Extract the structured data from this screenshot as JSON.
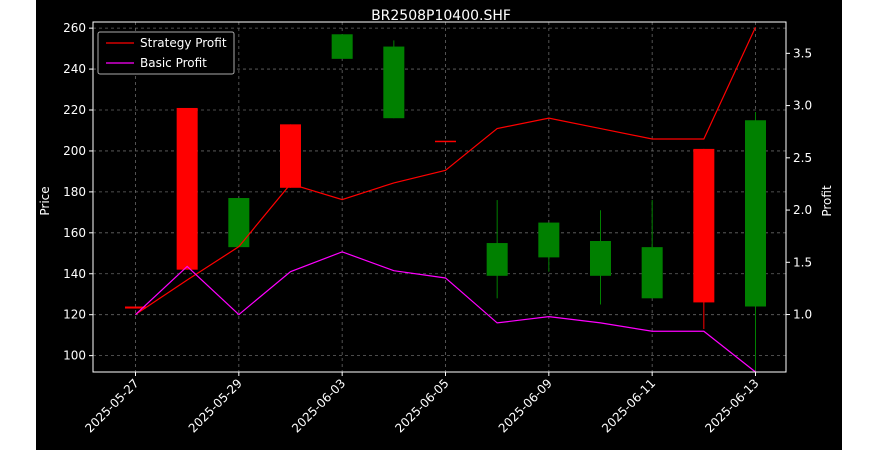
{
  "chart_data": {
    "type": "candlestick",
    "title": "BR2508P10400.SHF",
    "ylabel_left": "Price",
    "ylabel_right": "Profit",
    "xlabel": "",
    "grid": true,
    "legend_position": "top-left",
    "ylim_left": [
      92,
      263
    ],
    "ylim_right": [
      0.45,
      3.8
    ],
    "y_ticks_left": [
      100,
      120,
      140,
      160,
      180,
      200,
      220,
      240,
      260
    ],
    "y_ticks_right": [
      1.0,
      1.5,
      2.0,
      2.5,
      3.0,
      3.5
    ],
    "x_ticks": [
      {
        "i": 0,
        "label": "2025-05-27"
      },
      {
        "i": 2,
        "label": "2025-05-29"
      },
      {
        "i": 4,
        "label": "2025-06-03"
      },
      {
        "i": 6,
        "label": "2025-06-05"
      },
      {
        "i": 8,
        "label": "2025-06-09"
      },
      {
        "i": 10,
        "label": "2025-06-11"
      },
      {
        "i": 12,
        "label": "2025-06-13"
      }
    ],
    "candles": [
      {
        "i": 0,
        "open": 124,
        "close": 123,
        "high": 124,
        "low": 123,
        "color": "#ff0000"
      },
      {
        "i": 1,
        "open": 221,
        "close": 142,
        "high": 221,
        "low": 142,
        "color": "#ff0000"
      },
      {
        "i": 2,
        "open": 153,
        "close": 177,
        "high": 177,
        "low": 153,
        "color": "#008000"
      },
      {
        "i": 3,
        "open": 213,
        "close": 182,
        "high": 213,
        "low": 182,
        "color": "#ff0000"
      },
      {
        "i": 4,
        "open": 245,
        "close": 257,
        "high": 257,
        "low": 245,
        "color": "#008000"
      },
      {
        "i": 5,
        "open": 216,
        "close": 251,
        "high": 254,
        "low": 216,
        "color": "#008000"
      },
      {
        "i": 6,
        "open": 205,
        "close": 205,
        "high": 205,
        "low": 205,
        "color": "#ff0000"
      },
      {
        "i": 7,
        "open": 139,
        "close": 155,
        "high": 176,
        "low": 128,
        "color": "#008000"
      },
      {
        "i": 8,
        "open": 148,
        "close": 165,
        "high": 165,
        "low": 141,
        "color": "#008000"
      },
      {
        "i": 9,
        "open": 139,
        "close": 156,
        "high": 171,
        "low": 125,
        "color": "#008000"
      },
      {
        "i": 10,
        "open": 128,
        "close": 153,
        "high": 176,
        "low": 128,
        "color": "#008000"
      },
      {
        "i": 11,
        "open": 201,
        "close": 126,
        "high": 201,
        "low": 113,
        "color": "#ff0000"
      },
      {
        "i": 12,
        "open": 124,
        "close": 215,
        "high": 219,
        "low": 93,
        "color": "#008000"
      }
    ],
    "series": [
      {
        "name": "Strategy Profit",
        "color": "#ff0000",
        "values": [
          1.0,
          1.33,
          1.65,
          2.25,
          2.1,
          2.26,
          2.38,
          2.78,
          2.88,
          2.78,
          2.68,
          2.68,
          3.75
        ]
      },
      {
        "name": "Basic Profit",
        "color": "#ff00ff",
        "values": [
          1.0,
          1.46,
          1.0,
          1.41,
          1.6,
          1.42,
          1.35,
          0.92,
          0.98,
          0.92,
          0.84,
          0.84,
          0.45
        ]
      }
    ]
  }
}
